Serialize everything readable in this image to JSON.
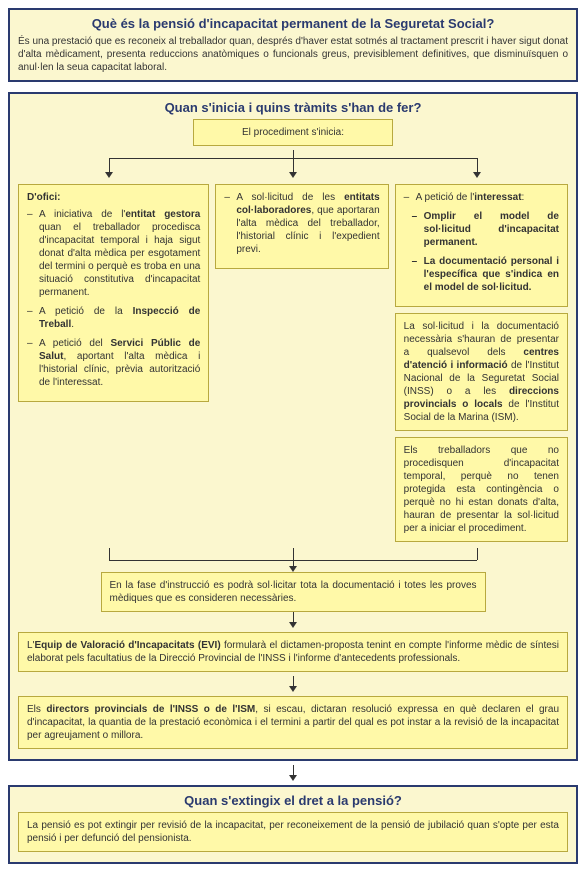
{
  "colors": {
    "outer_bg": "#fbf7cf",
    "outer_border": "#2a3a6f",
    "inner_bg": "#fff9a8",
    "inner_border": "#b8a93f",
    "text": "#333333",
    "title": "#2a3a6f"
  },
  "panel1": {
    "title": "Què és la pensió d'incapacitat permanent de la Seguretat Social?",
    "body": "És una prestació que es reconeix al treballador quan, després d'haver estat sotmés al tractament prescrit i haver sigut donat d'alta mèdicament, presenta reduccions anatòmiques o funcionals greus, previsiblement definitives, que disminuïsquen o anul·len la seua capacitat laboral."
  },
  "panel2": {
    "title": "Quan s'inicia i quins tràmits s'han de fer?",
    "start_box": "El procediment s'inicia:",
    "col1": {
      "heading": "D'ofici:",
      "items_html": [
        "A iniciativa de l'<b>entitat gestora</b> quan el treballador procedisca d'incapacitat temporal i haja sigut donat d'alta mèdica per esgotament del termini o perquè es troba en una situació constitutiva d'incapacitat permanent.",
        "A petició de la <b>Inspecció de Treball</b>.",
        "A petició del <b>Servici Públic de Salut</b>, aportant l'alta mèdica i l'historial clínic, prèvia autorització de l'interessat."
      ]
    },
    "col2": {
      "items_html": [
        "A sol·licitud de les <b>entitats col·laboradores</b>, que aportaran l'alta mèdica del treballador, l'historial clínic i l'expedient previ."
      ]
    },
    "col3": {
      "intro_html": "A petició de l'<b>interessat</b>:",
      "list": [
        "Omplir el model de sol·licitud d'incapacitat permanent.",
        "La documentació personal i l'específica que s'indica en el model de sol·licitud."
      ],
      "note1_html": "La sol·licitud i la documentació necessària s'hauran de presentar a qualsevol dels <b>centres d'atenció i informació</b> de l'Institut Nacional de la Seguretat Social (INSS) o a les <b>direccions provincials o locals</b> de l'Institut Social de la Marina (ISM).",
      "note2_html": "Els treballadors que no procedisquen d'incapacitat temporal, perquè no tenen protegida esta contingència o perquè no hi estan donats d'alta, hauran de presentar la sol·licitud per a iniciar el procediment."
    },
    "merge1": "En la fase d'instrucció es podrà sol·licitar tota la documentació i totes les proves mèdiques que es consideren necessàries.",
    "merge2_html": "L'<b>Equip de Valoració d'Incapacitats (EVI)</b> formularà el dictamen-proposta tenint en compte l'informe mèdic de síntesi elaborat pels facultatius de la Direcció Provincial de l'INSS i l'informe d'antecedents professionals.",
    "merge3_html": "Els <b>directors provincials de l'INSS o de l'ISM</b>, si escau, dictaran resolució expressa en què declaren el grau d'incapacitat, la quantia de la prestació econòmica i el termini a partir del qual es pot instar a la revisió de la incapacitat per agreujament o millora."
  },
  "panel3": {
    "title": "Quan s'extingix el dret a la pensió?",
    "body": "La pensió es pot extingir per revisió de la incapacitat, per reconeixement de la pensió de jubilació quan s'opte per esta pensió i per defunció del pensionista."
  }
}
